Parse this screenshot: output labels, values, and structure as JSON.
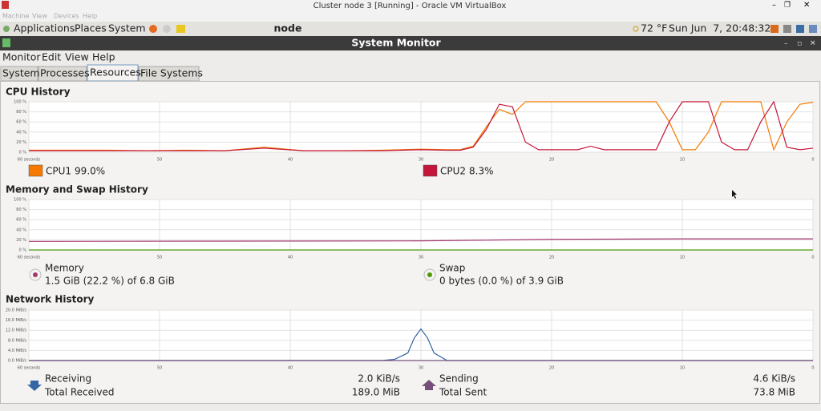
{
  "vbox": {
    "title": "Cluster node 3 [Running] - Oracle VM VirtualBox",
    "menu": [
      "Machine",
      "View",
      "Devices",
      "Help"
    ]
  },
  "panel": {
    "menu": [
      "Applications",
      "Places",
      "System"
    ],
    "host": "node",
    "weather": "72 °F",
    "clock": "Sun Jun  7, 20:48:32"
  },
  "window": {
    "title": "System Monitor",
    "menu": [
      "Monitor",
      "Edit",
      "View",
      "Help"
    ],
    "tabs": [
      "System",
      "Processes",
      "Resources",
      "File Systems"
    ]
  },
  "chart_data": [
    {
      "type": "line",
      "title": "CPU History",
      "x": [
        60,
        57,
        54,
        51,
        48,
        45,
        42,
        39,
        36,
        33,
        30,
        28,
        27,
        26,
        25,
        24,
        23,
        22,
        21,
        20,
        18,
        17,
        16,
        14,
        12,
        11,
        10,
        9,
        8,
        7,
        6,
        5,
        4,
        3,
        2,
        1,
        0
      ],
      "xlim": [
        60,
        0
      ],
      "xticks": [
        {
          "value": 60,
          "label": "60 seconds"
        },
        50,
        40,
        30,
        20,
        10,
        0
      ],
      "ylim": [
        0,
        100
      ],
      "yticks": [
        {
          "value": 100,
          "label": "100 %"
        },
        {
          "value": 80,
          "label": "80 %"
        },
        {
          "value": 60,
          "label": "60 %"
        },
        {
          "value": 40,
          "label": "40 %"
        },
        {
          "value": 20,
          "label": "20 %"
        },
        {
          "value": 0,
          "label": "0 %"
        }
      ],
      "grid": true,
      "series": [
        {
          "name": "CPU1",
          "current": "99.0%",
          "color": "#f57900",
          "values": [
            4,
            4,
            4,
            3,
            4,
            3,
            10,
            3,
            3,
            4,
            6,
            5,
            5,
            12,
            50,
            85,
            75,
            100,
            100,
            100,
            100,
            100,
            100,
            100,
            100,
            60,
            5,
            5,
            40,
            100,
            100,
            100,
            100,
            5,
            60,
            95,
            99
          ]
        },
        {
          "name": "CPU2",
          "current": "8.3%",
          "color": "#c4163a",
          "values": [
            3,
            3,
            3,
            3,
            3,
            3,
            8,
            3,
            3,
            3,
            5,
            4,
            4,
            10,
            45,
            95,
            90,
            20,
            5,
            5,
            5,
            12,
            5,
            5,
            5,
            60,
            100,
            100,
            100,
            20,
            5,
            5,
            60,
            100,
            10,
            5,
            8
          ]
        }
      ]
    },
    {
      "type": "line",
      "title": "Memory and Swap History",
      "x": [
        60,
        45,
        30,
        20,
        10,
        0
      ],
      "xlim": [
        60,
        0
      ],
      "xticks": [
        {
          "value": 60,
          "label": "60 seconds"
        },
        50,
        40,
        30,
        20,
        10,
        0
      ],
      "ylim": [
        0,
        100
      ],
      "yticks": [
        {
          "value": 100,
          "label": "100 %"
        },
        {
          "value": 80,
          "label": "80 %"
        },
        {
          "value": 60,
          "label": "60 %"
        },
        {
          "value": 40,
          "label": "40 %"
        },
        {
          "value": 20,
          "label": "20 %"
        },
        {
          "value": 0,
          "label": "0 %"
        }
      ],
      "grid": true,
      "series": [
        {
          "name": "Memory",
          "detail": "1.5 GiB (22.2 %) of 6.8 GiB",
          "color": "#a3386f",
          "values": [
            17,
            17.5,
            18,
            21,
            22,
            22
          ]
        },
        {
          "name": "Swap",
          "detail": "0 bytes (0.0 %) of 3.9 GiB",
          "color": "#4e9a06",
          "values": [
            0,
            0,
            0,
            0,
            0,
            0
          ]
        }
      ]
    },
    {
      "type": "line",
      "title": "Network History",
      "x": [
        60,
        33,
        32,
        31,
        30.5,
        30,
        29.5,
        29,
        28,
        0
      ],
      "xlim": [
        60,
        0
      ],
      "xticks": [
        {
          "value": 60,
          "label": "60 seconds"
        },
        50,
        40,
        30,
        20,
        10,
        0
      ],
      "ylim": [
        0,
        20
      ],
      "yticks": [
        {
          "value": 20,
          "label": "20.0 MiB/s"
        },
        {
          "value": 16,
          "label": "16.0 MiB/s"
        },
        {
          "value": 12,
          "label": "12.0 MiB/s"
        },
        {
          "value": 8,
          "label": "8.0 MiB/s"
        },
        {
          "value": 4,
          "label": "4.0 MiB/s"
        },
        {
          "value": 0,
          "label": "0.0 MiB/s"
        }
      ],
      "grid": true,
      "series": [
        {
          "name": "Receiving",
          "rate": "2.0 KiB/s",
          "total_label": "Total Received",
          "total": "189.0 MiB",
          "color": "#3465a4",
          "values": [
            0,
            0,
            0.5,
            3,
            9,
            12.5,
            9,
            3,
            0,
            0
          ]
        },
        {
          "name": "Sending",
          "rate": "4.6 KiB/s",
          "total_label": "Total Sent",
          "total": "73.8 MiB",
          "color": "#75507b",
          "values": [
            0,
            0,
            0,
            0,
            0,
            0,
            0,
            0,
            0,
            0
          ]
        }
      ]
    }
  ]
}
